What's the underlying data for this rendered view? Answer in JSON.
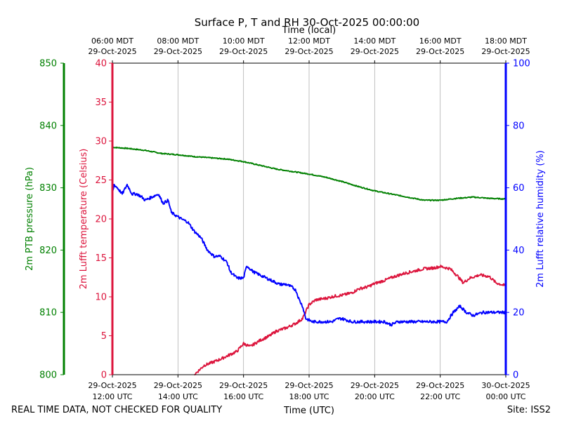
{
  "chart_data": {
    "type": "line",
    "title": "Surface P, T and RH 30-Oct-2025 00:00:00",
    "top_axis_label": "Time (local)",
    "top_ticks": [
      {
        "t": 0,
        "line1": "06:00 MDT",
        "line2": "29-Oct-2025"
      },
      {
        "t": 2,
        "line1": "08:00 MDT",
        "line2": "29-Oct-2025"
      },
      {
        "t": 4,
        "line1": "10:00 MDT",
        "line2": "29-Oct-2025"
      },
      {
        "t": 6,
        "line1": "12:00 MDT",
        "line2": "29-Oct-2025"
      },
      {
        "t": 8,
        "line1": "14:00 MDT",
        "line2": "29-Oct-2025"
      },
      {
        "t": 10,
        "line1": "16:00 MDT",
        "line2": "29-Oct-2025"
      },
      {
        "t": 12,
        "line1": "18:00 MDT",
        "line2": "29-Oct-2025"
      }
    ],
    "xlabel": "Time (UTC)",
    "xlim": [
      0,
      12
    ],
    "x_unit_note": "hours since 29-Oct-2025 12:00 UTC",
    "bottom_ticks": [
      {
        "t": 0,
        "line1": "29-Oct-2025",
        "line2": "12:00 UTC"
      },
      {
        "t": 2,
        "line1": "29-Oct-2025",
        "line2": "14:00 UTC"
      },
      {
        "t": 4,
        "line1": "29-Oct-2025",
        "line2": "16:00 UTC"
      },
      {
        "t": 6,
        "line1": "29-Oct-2025",
        "line2": "18:00 UTC"
      },
      {
        "t": 8,
        "line1": "29-Oct-2025",
        "line2": "20:00 UTC"
      },
      {
        "t": 10,
        "line1": "29-Oct-2025",
        "line2": "22:00 UTC"
      },
      {
        "t": 12,
        "line1": "30-Oct-2025",
        "line2": "00:00 UTC"
      }
    ],
    "axes": {
      "pressure": {
        "label": "2m PTB pressure (hPa)",
        "ylim": [
          800,
          850
        ],
        "ticks": [
          800,
          810,
          820,
          830,
          840,
          850
        ],
        "color": "#008000"
      },
      "temperature": {
        "label": "2m Lufft temperature (Celsius)",
        "ylim": [
          0,
          40
        ],
        "ticks": [
          0,
          5,
          10,
          15,
          20,
          25,
          30,
          35,
          40
        ],
        "color": "#dc143c"
      },
      "humidity": {
        "label": "2m Lufft relative humidity (%)",
        "ylim": [
          0,
          100
        ],
        "ticks": [
          0,
          20,
          40,
          60,
          80,
          100
        ],
        "color": "#0000ff"
      }
    },
    "grid": "vertical",
    "series": [
      {
        "name": "2m PTB pressure",
        "axis": "pressure",
        "color": "#008000",
        "points": [
          [
            0,
            836.5
          ],
          [
            0.5,
            836.3
          ],
          [
            1,
            836.0
          ],
          [
            1.5,
            835.5
          ],
          [
            2,
            835.3
          ],
          [
            2.5,
            835.0
          ],
          [
            3,
            834.8
          ],
          [
            3.5,
            834.6
          ],
          [
            4,
            834.2
          ],
          [
            4.5,
            833.6
          ],
          [
            5,
            833.0
          ],
          [
            5.5,
            832.6
          ],
          [
            6,
            832.2
          ],
          [
            6.5,
            831.7
          ],
          [
            7,
            831.0
          ],
          [
            7.5,
            830.2
          ],
          [
            8,
            829.5
          ],
          [
            8.5,
            829.0
          ],
          [
            9,
            828.5
          ],
          [
            9.5,
            828.0
          ],
          [
            10,
            828.0
          ],
          [
            10.5,
            828.3
          ],
          [
            11,
            828.5
          ],
          [
            11.5,
            828.3
          ],
          [
            12,
            828.2
          ]
        ]
      },
      {
        "name": "2m Lufft temperature",
        "axis": "temperature",
        "color": "#dc143c",
        "points": [
          [
            2.5,
            0
          ],
          [
            2.8,
            1.2
          ],
          [
            3,
            1.5
          ],
          [
            3.3,
            2.0
          ],
          [
            3.6,
            2.6
          ],
          [
            3.8,
            3.0
          ],
          [
            4,
            4.0
          ],
          [
            4.2,
            3.6
          ],
          [
            4.5,
            4.4
          ],
          [
            4.8,
            5.0
          ],
          [
            5.0,
            5.6
          ],
          [
            5.3,
            6.0
          ],
          [
            5.6,
            6.6
          ],
          [
            5.8,
            7.2
          ],
          [
            6.0,
            9.0
          ],
          [
            6.2,
            9.6
          ],
          [
            6.5,
            9.8
          ],
          [
            6.8,
            10.1
          ],
          [
            7.0,
            10.2
          ],
          [
            7.3,
            10.5
          ],
          [
            7.5,
            11.0
          ],
          [
            7.8,
            11.3
          ],
          [
            8.0,
            11.7
          ],
          [
            8.3,
            12.1
          ],
          [
            8.6,
            12.6
          ],
          [
            8.9,
            13.0
          ],
          [
            9.2,
            13.3
          ],
          [
            9.5,
            13.6
          ],
          [
            9.8,
            13.7
          ],
          [
            10.0,
            13.9
          ],
          [
            10.3,
            13.6
          ],
          [
            10.5,
            12.8
          ],
          [
            10.7,
            11.8
          ],
          [
            10.9,
            12.4
          ],
          [
            11.2,
            12.8
          ],
          [
            11.5,
            12.6
          ],
          [
            11.7,
            11.8
          ],
          [
            12.0,
            11.4
          ]
        ]
      },
      {
        "name": "2m Lufft relative humidity",
        "axis": "humidity",
        "color": "#0000ff",
        "points": [
          [
            0,
            58
          ],
          [
            0.05,
            61
          ],
          [
            0.15,
            60
          ],
          [
            0.3,
            58
          ],
          [
            0.45,
            61
          ],
          [
            0.6,
            58
          ],
          [
            0.75,
            58
          ],
          [
            0.9,
            57
          ],
          [
            1,
            56
          ],
          [
            1.2,
            57
          ],
          [
            1.4,
            58
          ],
          [
            1.55,
            55
          ],
          [
            1.7,
            56
          ],
          [
            1.8,
            52
          ],
          [
            1.95,
            51
          ],
          [
            2.1,
            50
          ],
          [
            2.3,
            49
          ],
          [
            2.5,
            46
          ],
          [
            2.7,
            44
          ],
          [
            2.9,
            40
          ],
          [
            3.1,
            38
          ],
          [
            3.3,
            38
          ],
          [
            3.5,
            36
          ],
          [
            3.6,
            33
          ],
          [
            3.8,
            31
          ],
          [
            4.0,
            31
          ],
          [
            4.1,
            35
          ],
          [
            4.3,
            33
          ],
          [
            4.5,
            32
          ],
          [
            4.7,
            31
          ],
          [
            4.9,
            30
          ],
          [
            5.1,
            29
          ],
          [
            5.3,
            29
          ],
          [
            5.5,
            28
          ],
          [
            5.6,
            27
          ],
          [
            5.7,
            24
          ],
          [
            5.8,
            22
          ],
          [
            5.9,
            18
          ],
          [
            6.1,
            17
          ],
          [
            6.4,
            17
          ],
          [
            6.7,
            17
          ],
          [
            6.9,
            18
          ],
          [
            7.0,
            18
          ],
          [
            7.3,
            17
          ],
          [
            7.6,
            17
          ],
          [
            8.0,
            17
          ],
          [
            8.3,
            17
          ],
          [
            8.5,
            16
          ],
          [
            8.7,
            17
          ],
          [
            9.0,
            17
          ],
          [
            9.3,
            17
          ],
          [
            9.6,
            17
          ],
          [
            9.9,
            17
          ],
          [
            10.2,
            17
          ],
          [
            10.4,
            20
          ],
          [
            10.6,
            22
          ],
          [
            10.8,
            20
          ],
          [
            11.0,
            19
          ],
          [
            11.3,
            20
          ],
          [
            11.6,
            20
          ],
          [
            12.0,
            20
          ]
        ]
      }
    ],
    "footer_left": "REAL TIME DATA, NOT CHECKED FOR QUALITY",
    "footer_right": "Site: ISS2"
  }
}
